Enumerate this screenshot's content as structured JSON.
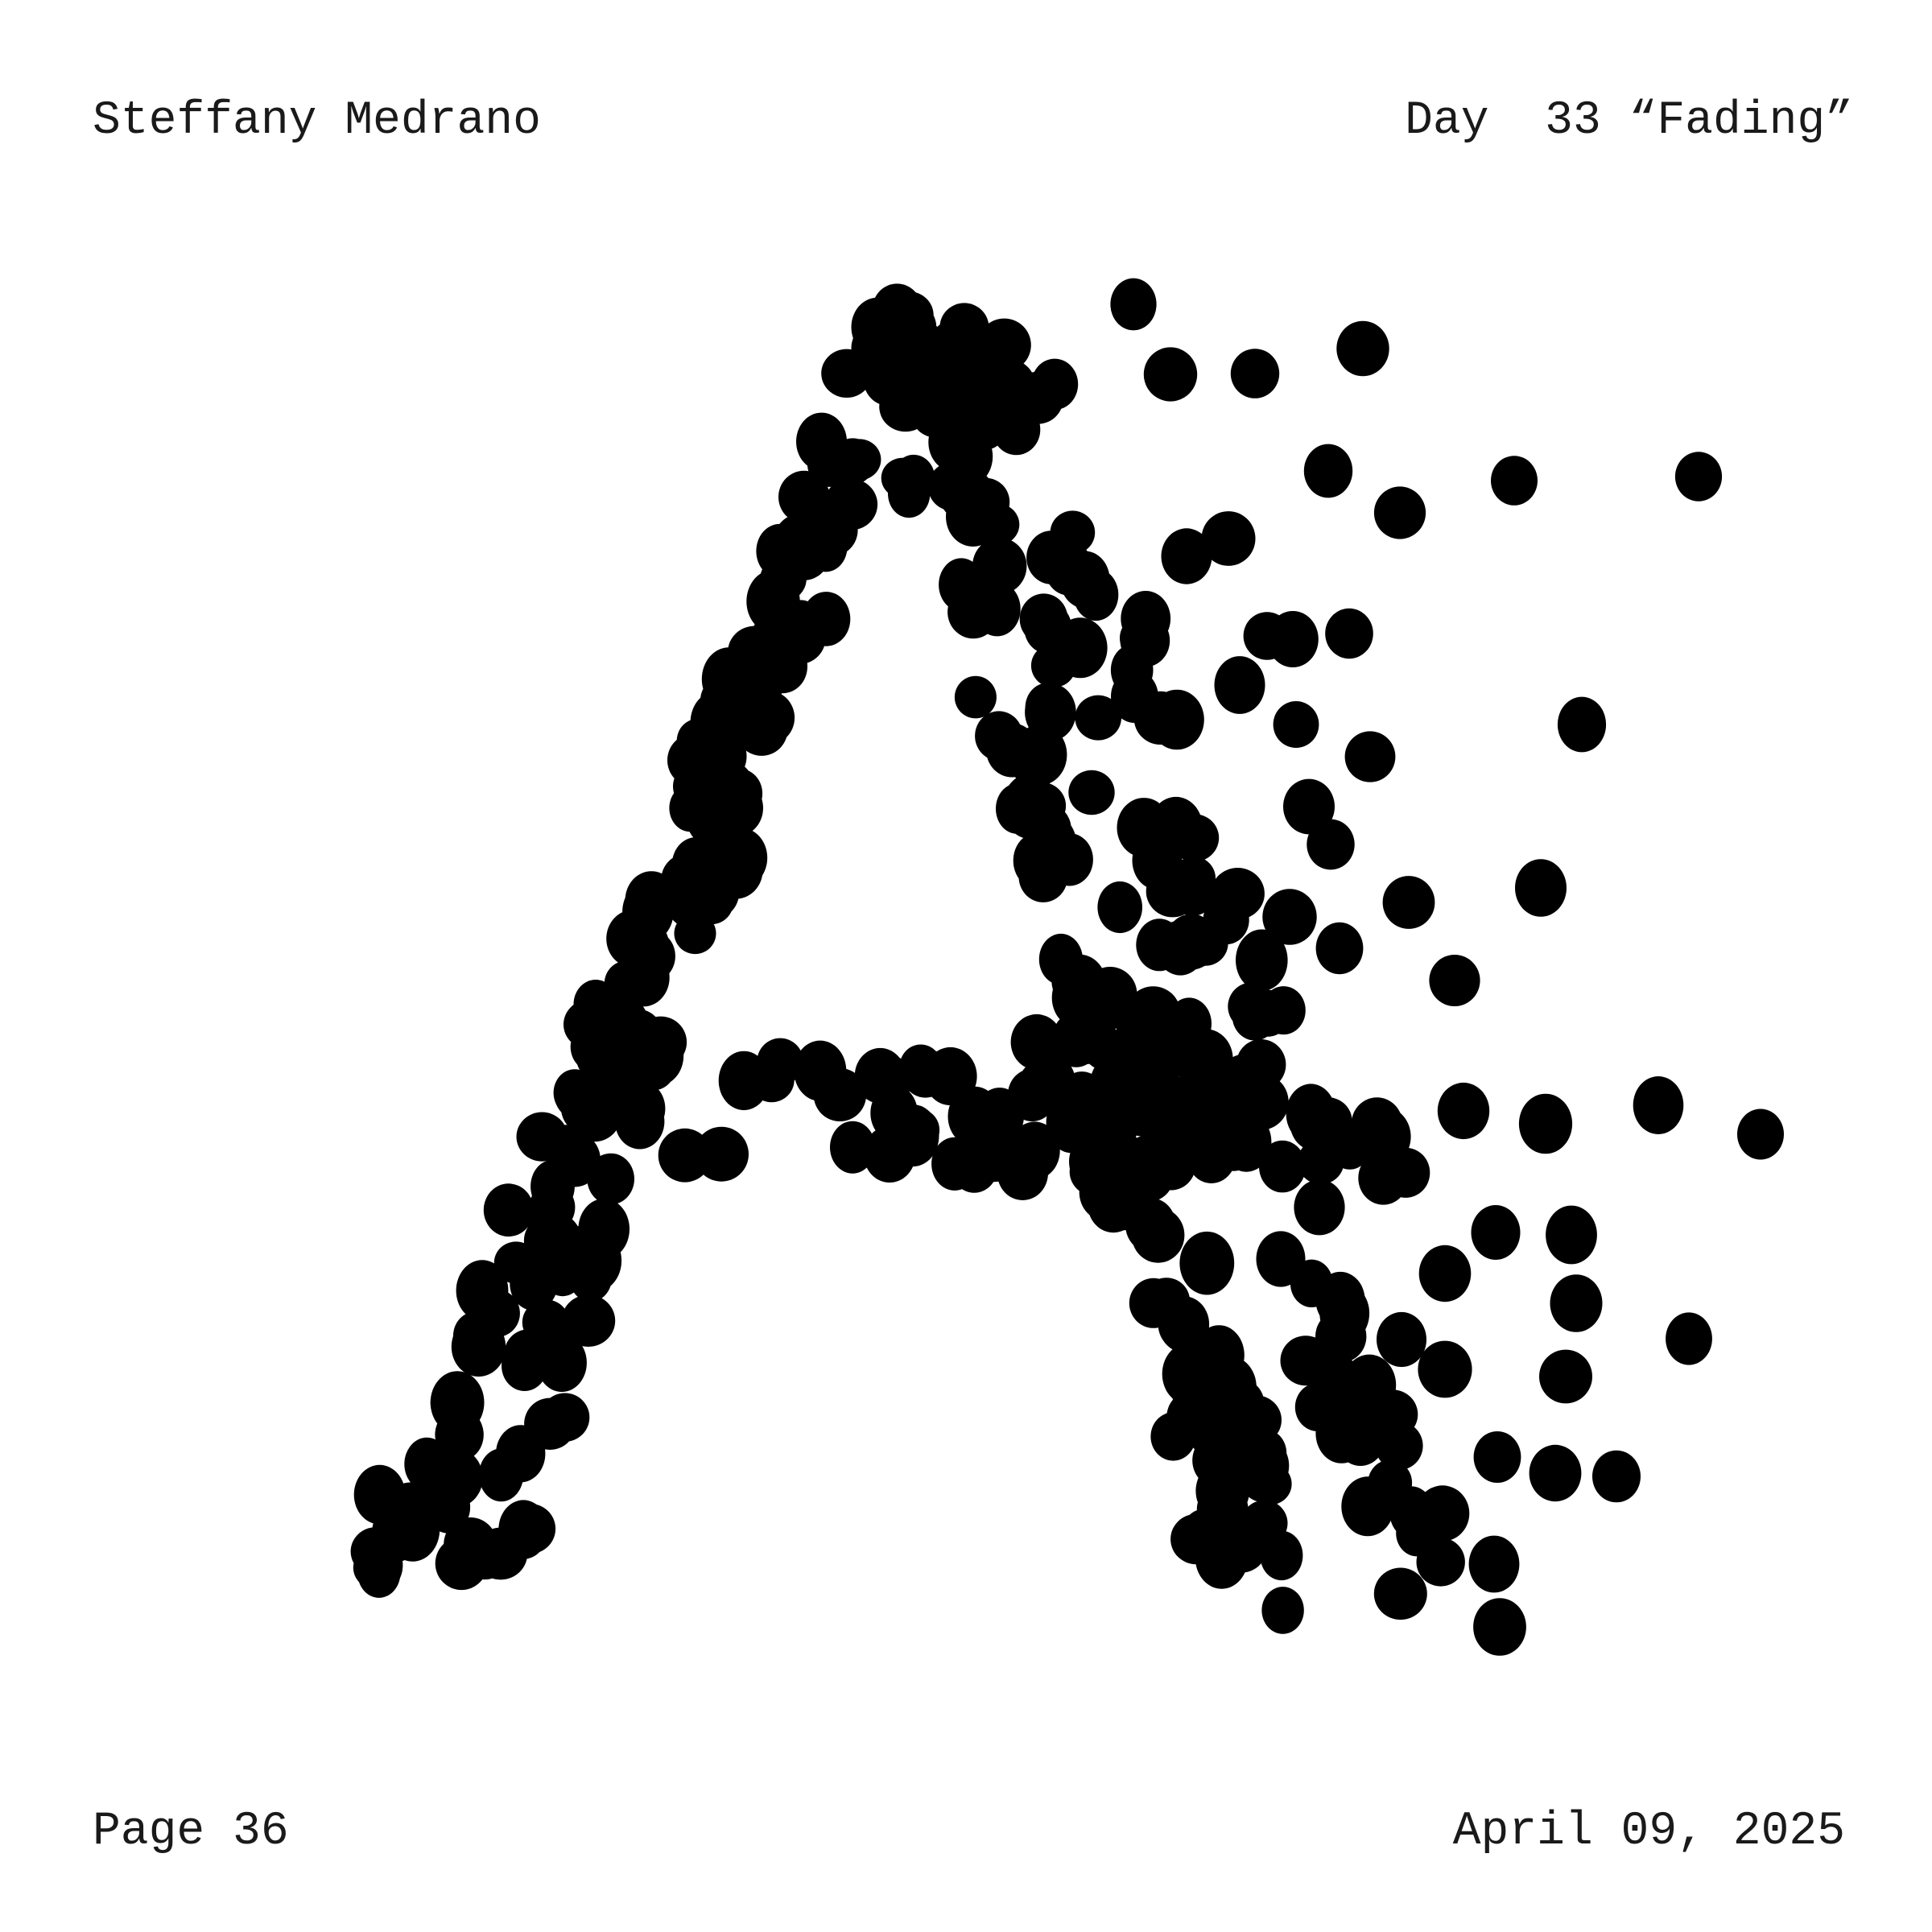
{
  "header": {
    "author": "Steffany Medrano",
    "day_title": "Day  33 “Fading”"
  },
  "footer": {
    "page_label": "Page 36",
    "date": "April 09, 2025"
  },
  "artwork": {
    "subject": "letter-A",
    "dot_color": "#000000",
    "background": "#ffffff"
  }
}
